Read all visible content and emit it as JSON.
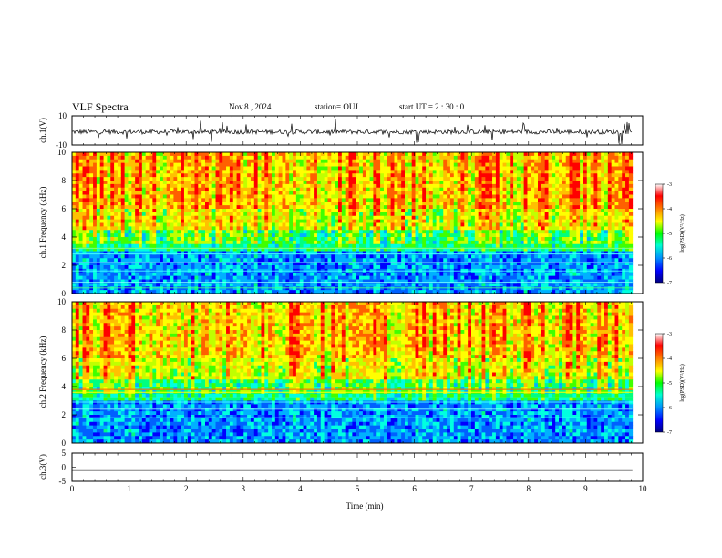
{
  "header": {
    "title": "VLF Spectra",
    "date": "Nov.8 , 2024",
    "station": "station= OUJ",
    "start": "start UT = 2 : 30 : 0"
  },
  "chart_data": [
    {
      "type": "line",
      "id": "ch1-waveform",
      "ylabel": "ch.1(V)",
      "ylim": [
        -10,
        10
      ],
      "yticks": [
        "10",
        "-10"
      ],
      "xlim": [
        0,
        10
      ],
      "baseline": -1,
      "trace_end": 9.82
    },
    {
      "type": "heatmap",
      "id": "ch1-spectrogram",
      "ylabel": "ch.1 Frequency (kHz)",
      "ylim": [
        0,
        10
      ],
      "yticks": [
        "0",
        "2",
        "4",
        "6",
        "8",
        "10"
      ],
      "xlim": [
        0,
        10
      ],
      "data_end": 9.82,
      "colorbar": {
        "label": "log(PSD)(V²/Hz)",
        "range": [
          -7,
          -3
        ],
        "ticks": [
          "-3",
          "-4",
          "-5",
          "-6",
          "-7"
        ]
      }
    },
    {
      "type": "heatmap",
      "id": "ch2-spectrogram",
      "ylabel": "ch.2 Frequency (kHz)",
      "ylim": [
        0,
        10
      ],
      "yticks": [
        "0",
        "2",
        "4",
        "6",
        "8",
        "10"
      ],
      "xlim": [
        0,
        10
      ],
      "data_end": 9.82,
      "colorbar": {
        "label": "log(PSD)(V²/Hz)",
        "range": [
          -7,
          -3
        ],
        "ticks": [
          "-3",
          "-4",
          "-5",
          "-6",
          "-7"
        ]
      }
    },
    {
      "type": "line",
      "id": "ch3-waveform",
      "ylabel": "ch.3(V)",
      "ylim": [
        -5,
        5
      ],
      "yticks": [
        "5",
        "0",
        "-5"
      ],
      "xlim": [
        0,
        10
      ],
      "values_constant": -1,
      "trace_end": 9.82,
      "xlabel": "Time (min)",
      "xticks": [
        "0",
        "1",
        "2",
        "3",
        "4",
        "5",
        "6",
        "7",
        "8",
        "9",
        "10"
      ]
    }
  ],
  "colors": {
    "scale": [
      "#000080",
      "#0000ff",
      "#0080ff",
      "#00d0ff",
      "#00ff80",
      "#40ff00",
      "#c0ff00",
      "#ffff00",
      "#ffc000",
      "#ff6000",
      "#ff0000",
      "#ffd0d0",
      "#ffffff"
    ]
  }
}
